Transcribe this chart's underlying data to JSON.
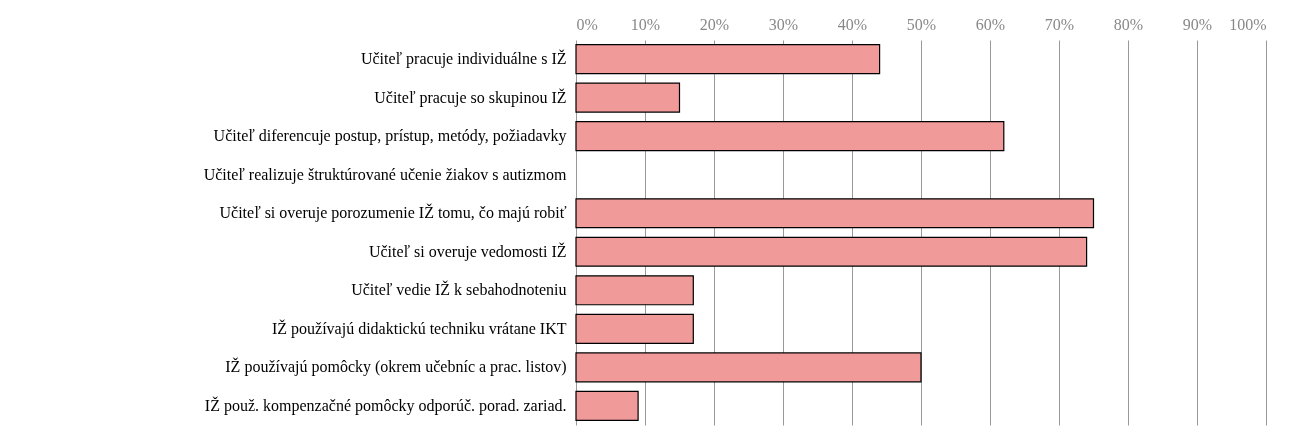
{
  "chart_data": {
    "type": "bar",
    "orientation": "horizontal",
    "categories": [
      "Učiteľ pracuje individuálne s IŽ",
      "Učiteľ pracuje so skupinou IŽ",
      "Učiteľ diferencuje postup, prístup, metódy, požiadavky",
      "Učiteľ realizuje štruktúrované učenie žiakov s autizmom",
      "Učiteľ si overuje porozumenie IŽ tomu, čo majú robiť",
      "Učiteľ si overuje vedomosti IŽ",
      "Učiteľ vedie IŽ k sebahodnoteniu",
      "IŽ používajú didaktickú techniku vrátane IKT",
      "IŽ používajú pomôcky (okrem učebníc a prac. listov)",
      "IŽ použ. kompenzačné pomôcky odporúč. porad. zariad."
    ],
    "values": [
      44,
      15,
      62,
      0,
      75,
      74,
      17,
      17,
      50,
      9
    ],
    "color": "#f09a9a",
    "xlim": [
      0,
      100
    ],
    "xticks": [
      {
        "value": 0,
        "label": "0%"
      },
      {
        "value": 10,
        "label": "10%"
      },
      {
        "value": 20,
        "label": "20%"
      },
      {
        "value": 30,
        "label": "30%"
      },
      {
        "value": 40,
        "label": "40%"
      },
      {
        "value": 50,
        "label": "50%"
      },
      {
        "value": 60,
        "label": "60%"
      },
      {
        "value": 70,
        "label": "70%"
      },
      {
        "value": 80,
        "label": "80%"
      },
      {
        "value": 90,
        "label": "90%"
      },
      {
        "value": 100,
        "label": "100%"
      }
    ],
    "grid": "x"
  }
}
